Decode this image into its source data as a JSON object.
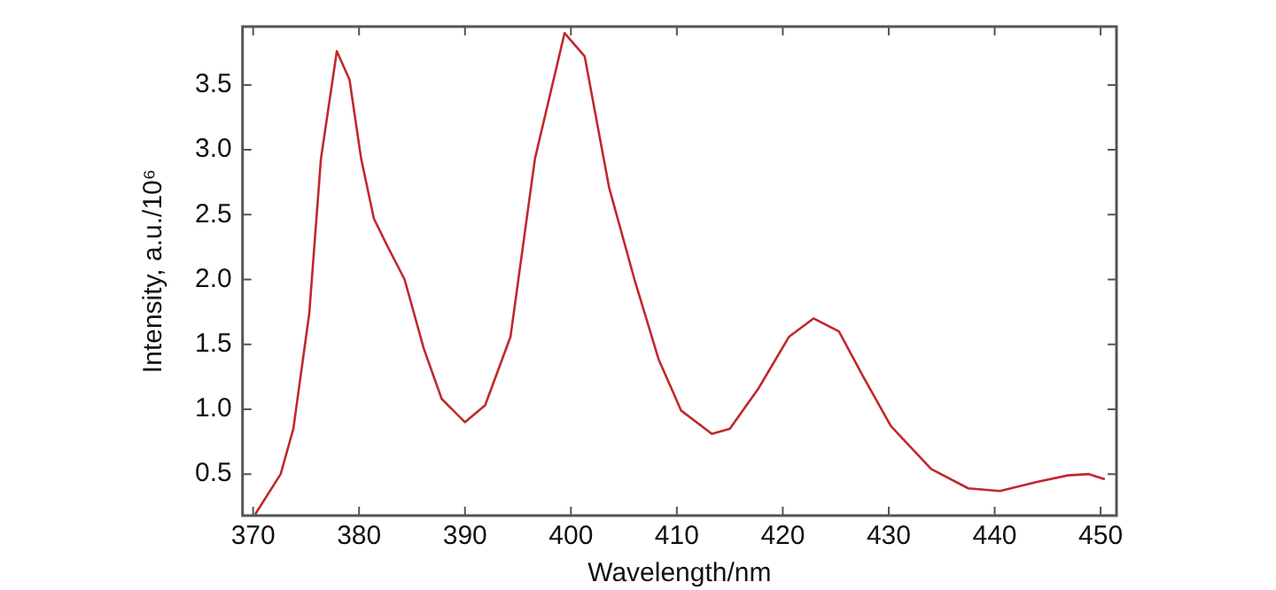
{
  "chart_data": {
    "type": "line",
    "xlabel": "Wavelength/nm",
    "ylabel": "Intensity, a.u./10⁶",
    "xlim": [
      369,
      451.5
    ],
    "ylim": [
      0.18,
      3.95
    ],
    "xticks": [
      370,
      380,
      390,
      400,
      410,
      420,
      430,
      440,
      450
    ],
    "yticks": [
      {
        "value": 0.5,
        "label": "0.5"
      },
      {
        "value": 1,
        "label": "1.0"
      },
      {
        "value": 1.5,
        "label": "1.5"
      },
      {
        "value": 2,
        "label": "2.0"
      },
      {
        "value": 2.5,
        "label": "2.5"
      },
      {
        "value": 3,
        "label": "3.0"
      },
      {
        "value": 3.5,
        "label": "3.5"
      }
    ],
    "grid": false,
    "legend": false,
    "marker": "none",
    "line_style": "solid",
    "series": [
      {
        "color": "#c0282d",
        "x": [
          370.2,
          372.6,
          373.8,
          375.3,
          376.4,
          377.9,
          379.1,
          380.2,
          381.4,
          382.6,
          384.3,
          386.1,
          387.8,
          390.0,
          391.9,
          394.3,
          396.6,
          399.4,
          401.3,
          403.6,
          406.0,
          408.3,
          410.4,
          413.3,
          415.0,
          417.7,
          420.6,
          422.9,
          425.3,
          427.6,
          430.2,
          434.0,
          437.5,
          440.5,
          444.0,
          446.9,
          448.9,
          450.4
        ],
        "values": [
          0.19,
          0.5,
          0.85,
          1.74,
          2.93,
          3.76,
          3.54,
          2.93,
          2.47,
          2.27,
          2.0,
          1.47,
          1.08,
          0.9,
          1.03,
          1.56,
          2.93,
          3.9,
          3.72,
          2.71,
          2.0,
          1.38,
          0.99,
          0.81,
          0.85,
          1.16,
          1.56,
          1.7,
          1.6,
          1.25,
          0.87,
          0.54,
          0.39,
          0.37,
          0.44,
          0.49,
          0.5,
          0.46
        ]
      }
    ]
  }
}
